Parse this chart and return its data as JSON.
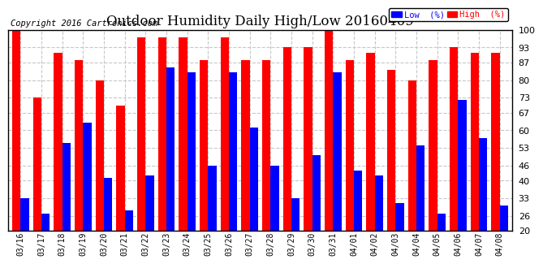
{
  "title": "Outdoor Humidity Daily High/Low 20160409",
  "copyright": "Copyright 2016 Cartronics.com",
  "legend_low": "Low  (%)",
  "legend_high": "High  (%)",
  "dates": [
    "03/16",
    "03/17",
    "03/18",
    "03/19",
    "03/20",
    "03/21",
    "03/22",
    "03/23",
    "03/24",
    "03/25",
    "03/26",
    "03/27",
    "03/28",
    "03/29",
    "03/30",
    "03/31",
    "04/01",
    "04/02",
    "04/03",
    "04/04",
    "04/05",
    "04/06",
    "04/07",
    "04/08"
  ],
  "high": [
    100,
    73,
    91,
    88,
    80,
    70,
    97,
    97,
    97,
    88,
    97,
    88,
    88,
    93,
    93,
    100,
    88,
    91,
    84,
    80,
    88,
    93,
    91,
    91
  ],
  "low": [
    33,
    27,
    55,
    63,
    41,
    28,
    42,
    85,
    83,
    46,
    83,
    61,
    46,
    33,
    50,
    83,
    44,
    42,
    31,
    54,
    27,
    72,
    57,
    30
  ],
  "ylim_min": 20,
  "ylim_max": 100,
  "yticks": [
    20,
    26,
    33,
    40,
    46,
    53,
    60,
    67,
    73,
    80,
    87,
    93,
    100
  ],
  "bar_color_high": "#ff0000",
  "bar_color_low": "#0000ff",
  "bg_color": "#ffffff",
  "grid_color": "#c8c8c8",
  "title_fontsize": 12,
  "copyright_fontsize": 7.5,
  "bar_width": 0.4
}
